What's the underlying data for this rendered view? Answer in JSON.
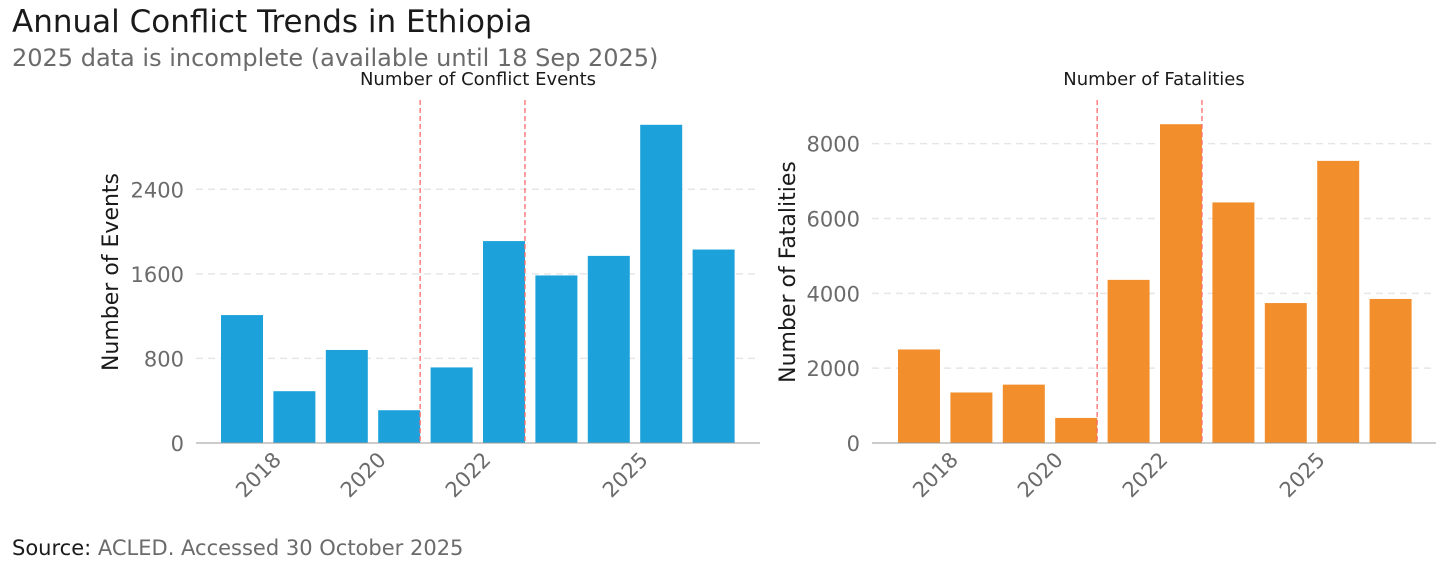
{
  "title": "Annual Conflict Trends in Ethiopia",
  "subtitle": "2025 data is incomplete (available until 18 Sep 2025)",
  "source": {
    "label": "Source:",
    "value": "ACLED. Accessed 30 October 2025"
  },
  "colors": {
    "events": "#1ca1db",
    "fatalities": "#f28e2b",
    "refline": "#ff6b6b",
    "axis": "#9a9a9a",
    "grid": "#e6e6e6"
  },
  "chart_data": [
    {
      "type": "bar",
      "title": "Number of Conflict Events",
      "xlabel": "",
      "ylabel": "Number of Events",
      "x": [
        2017,
        2018,
        2019,
        2020,
        2021,
        2022,
        2023,
        2024,
        2025,
        2026
      ],
      "values": [
        1210,
        490,
        880,
        310,
        715,
        1910,
        1585,
        1770,
        3010,
        1830
      ],
      "ylim": [
        0,
        3150
      ],
      "yticks": [
        0,
        800,
        1600,
        2400
      ],
      "xticks": [
        2018,
        2020,
        2022,
        2025
      ],
      "vlines": [
        2020.4,
        2022.4
      ],
      "grid": true
    },
    {
      "type": "bar",
      "title": "Number of Fatalities",
      "xlabel": "",
      "ylabel": "Number of Fatalities",
      "x": [
        2017,
        2018,
        2019,
        2020,
        2021,
        2022,
        2023,
        2024,
        2025,
        2026
      ],
      "values": [
        2500,
        1350,
        1560,
        670,
        4360,
        8520,
        6430,
        3740,
        7540,
        3850
      ],
      "ylim": [
        0,
        8900
      ],
      "yticks": [
        0,
        2000,
        4000,
        6000,
        8000
      ],
      "xticks": [
        2018,
        2020,
        2022,
        2025
      ],
      "vlines": [
        2020.4,
        2022.4
      ],
      "grid": true
    }
  ]
}
